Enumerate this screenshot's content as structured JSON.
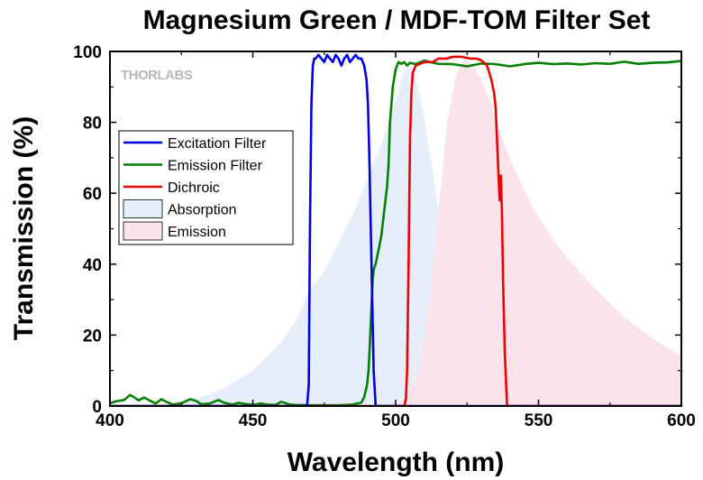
{
  "chart_data": {
    "type": "line",
    "title": "Magnesium Green / MDF-TOM Filter Set",
    "xlabel": "Wavelength (nm)",
    "ylabel": "Transmission (%)",
    "xlim": [
      400,
      600
    ],
    "ylim": [
      0,
      100
    ],
    "x_ticks": [
      400,
      450,
      500,
      550,
      600
    ],
    "y_ticks": [
      0,
      20,
      40,
      60,
      80,
      100
    ],
    "x_tick_labels": [
      "400",
      "450",
      "500",
      "550",
      "600"
    ],
    "y_tick_labels": [
      "0",
      "20",
      "40",
      "60",
      "80",
      "100"
    ],
    "grid": false,
    "legend_position": "left",
    "brand": "THORLABS",
    "series": [
      {
        "name": "Excitation Filter",
        "kind": "line",
        "color": "#0000dd",
        "x": [
          400,
          469,
          469.6,
          470.0,
          470.5,
          471.0,
          471.5,
          472,
          473,
          474,
          475,
          476,
          477,
          478,
          479,
          480,
          481,
          482,
          483,
          484,
          485,
          486,
          487,
          488,
          489,
          489.8,
          490.3,
          490.8,
          491.3,
          491.8,
          492.3,
          493,
          600
        ],
        "y": [
          0,
          0,
          6,
          50,
          85,
          96,
          98,
          98,
          99,
          98,
          97,
          99,
          98,
          97,
          99,
          98,
          96,
          98,
          99,
          97,
          98,
          99,
          98,
          98,
          96,
          92,
          85,
          70,
          50,
          30,
          10,
          0,
          0
        ]
      },
      {
        "name": "Emission Filter",
        "kind": "line",
        "color": "#008000",
        "x": [
          400,
          402,
          405,
          407,
          408,
          410,
          412,
          414,
          416,
          418,
          420,
          422,
          425,
          428,
          430,
          432,
          435,
          438,
          440,
          443,
          445,
          447,
          450,
          453,
          455,
          458,
          460,
          463,
          465,
          470,
          480,
          485,
          488,
          489,
          490,
          490.5,
          491,
          491.5,
          492,
          492.5,
          493,
          493.5,
          494,
          495,
          496,
          497,
          497.5,
          498,
          499,
          500,
          501,
          502,
          503,
          504,
          505,
          507,
          510,
          515,
          520,
          525,
          530,
          535,
          540,
          545,
          550,
          555,
          560,
          565,
          570,
          575,
          580,
          585,
          590,
          595,
          600
        ],
        "y": [
          0.8,
          1.3,
          1.7,
          3.1,
          2.7,
          1.6,
          2.4,
          1.5,
          0.7,
          1.9,
          1.1,
          0.4,
          0.8,
          1.9,
          1.5,
          0.5,
          0.7,
          1.7,
          0.9,
          0.4,
          0.9,
          0.6,
          0.3,
          0.7,
          0.4,
          0.3,
          1.2,
          0.4,
          0.3,
          0.2,
          0.2,
          0.4,
          1.0,
          2.5,
          6,
          10,
          18,
          28,
          36,
          39,
          40,
          42,
          44,
          48,
          55,
          62,
          68,
          80,
          90,
          95,
          97,
          96.5,
          97,
          96,
          96.8,
          96.4,
          97.4,
          96.5,
          96.4,
          95.8,
          96.6,
          96.4,
          95.8,
          96.4,
          96.8,
          96.4,
          96.6,
          96.3,
          96.7,
          96.5,
          97.1,
          96.5,
          96.8,
          96.9,
          97.3
        ]
      },
      {
        "name": "Dichroic",
        "kind": "line",
        "color": "#ee0000",
        "x": [
          400,
          503,
          503.6,
          504.0,
          504.5,
          505,
          505.5,
          506,
          507,
          510,
          513,
          515,
          518,
          520,
          523,
          526,
          528,
          530,
          532,
          533.5,
          534.5,
          535.0,
          535.5,
          536.0,
          536.4,
          536.8,
          537.2,
          537.6,
          538.2,
          539,
          600
        ],
        "y": [
          0,
          0,
          2,
          10,
          40,
          75,
          88,
          94,
          96,
          97,
          97,
          98,
          98,
          98.5,
          98.5,
          98,
          98,
          97.5,
          96,
          92,
          88,
          84,
          75,
          65,
          58,
          65,
          55,
          35,
          15,
          0,
          0
        ]
      },
      {
        "name": "Absorption",
        "kind": "area",
        "color": "#e6eefb",
        "x": [
          400,
          410,
          420,
          430,
          440,
          450,
          460,
          465,
          470,
          475,
          480,
          485,
          490,
          495,
          500,
          503,
          505,
          507,
          509,
          511,
          513,
          515,
          517,
          520,
          523,
          526,
          530,
          600
        ],
        "y": [
          0,
          0,
          0.3,
          2,
          5,
          10,
          18,
          24,
          33,
          38,
          46,
          54,
          64,
          74,
          86,
          94,
          96,
          92,
          86,
          76,
          66,
          55,
          42,
          28,
          14,
          6,
          0,
          0
        ]
      },
      {
        "name": "Emission",
        "kind": "area",
        "color": "#fbe3ec",
        "x": [
          400,
          500,
          505,
          508,
          512,
          515,
          518,
          521,
          524,
          527,
          530,
          533,
          537,
          542,
          548,
          555,
          562,
          570,
          580,
          590,
          600
        ],
        "y": [
          0,
          0,
          4,
          10,
          30,
          55,
          80,
          93,
          98,
          96,
          92,
          86,
          76,
          66,
          56,
          47,
          40,
          33,
          25,
          19,
          14
        ]
      }
    ]
  }
}
